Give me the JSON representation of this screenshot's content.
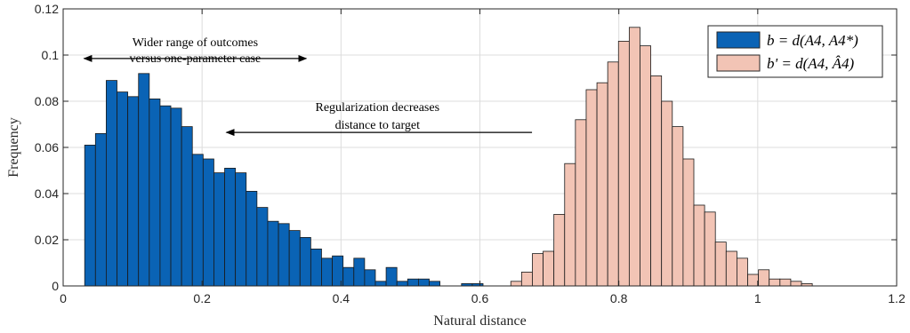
{
  "chart_data": {
    "type": "bar",
    "xlabel": "Natural distance",
    "ylabel": "Frequency",
    "xlim": [
      0,
      1.2
    ],
    "ylim": [
      0,
      0.12
    ],
    "x_ticks": [
      "0",
      "0.2",
      "0.4",
      "0.6",
      "0.8",
      "1",
      "1.2"
    ],
    "y_ticks": [
      "0",
      "0.02",
      "0.04",
      "0.06",
      "0.08",
      "0.1",
      "0.12"
    ],
    "grid": true,
    "legend_position": "top-right",
    "bin_width": 0.0155,
    "series": [
      {
        "name": "b = d(A4, A4*)",
        "color": "#0a63b5",
        "x_start": 0.031,
        "values": [
          0.061,
          0.066,
          0.089,
          0.084,
          0.082,
          0.092,
          0.081,
          0.078,
          0.077,
          0.069,
          0.057,
          0.055,
          0.049,
          0.051,
          0.049,
          0.041,
          0.034,
          0.028,
          0.027,
          0.024,
          0.021,
          0.016,
          0.012,
          0.013,
          0.008,
          0.012,
          0.007,
          0.002,
          0.008,
          0.002,
          0.003,
          0.003,
          0.002,
          0.0,
          0.0,
          0.001,
          0.001,
          0.0,
          0.0,
          0.0,
          0.0,
          0.0,
          0.0,
          0.0,
          0.0,
          0.0,
          0.0,
          0.001,
          0.001
        ]
      },
      {
        "name": "b' = d(A4, Â4)",
        "color": "#f2c4b5",
        "x_start": 0.6445,
        "values": [
          0.002,
          0.006,
          0.014,
          0.015,
          0.031,
          0.053,
          0.072,
          0.085,
          0.088,
          0.097,
          0.106,
          0.112,
          0.104,
          0.091,
          0.08,
          0.069,
          0.055,
          0.035,
          0.032,
          0.019,
          0.015,
          0.012,
          0.005,
          0.007,
          0.003,
          0.003,
          0.002,
          0.001,
          0.0,
          0.0,
          0.0,
          0.0,
          0.0,
          0.0,
          0.0,
          0.0,
          0.0,
          0.0,
          0.0,
          0.0,
          0.0,
          0.0,
          0.001,
          0.001,
          0.0,
          0.001,
          0.001,
          0.0,
          0.0,
          0.0,
          0.0,
          0.0,
          0.0,
          0.0,
          0.001
        ]
      }
    ],
    "annotations": [
      {
        "text_lines": [
          "Wider range of outcomes",
          "versus one-parameter case"
        ],
        "arrow": "double",
        "x_from": 0.03,
        "x_to": 0.35,
        "y": 0.0985
      },
      {
        "text_lines": [
          "Regularization decreases",
          "distance to target"
        ],
        "arrow": "left",
        "x_from": 0.675,
        "x_to": 0.235,
        "y": 0.0665
      }
    ]
  }
}
